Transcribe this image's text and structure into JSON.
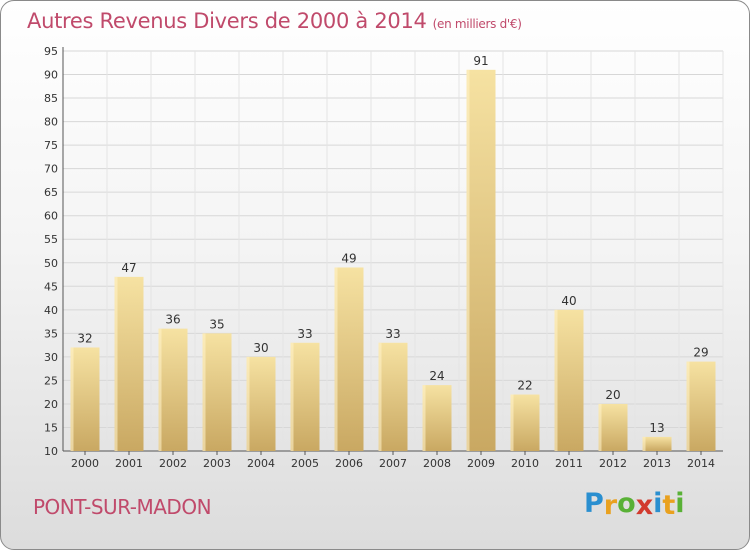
{
  "header": {
    "title": "Autres Revenus Divers de 2000 à 2014",
    "unit": "(en milliers d'€)"
  },
  "footer": {
    "town": "PONT-SUR-MADON",
    "logo_letters": [
      "P",
      "r",
      "o",
      "x",
      "i",
      "t",
      "i"
    ],
    "logo_colors": [
      "#2a8fd0",
      "#e9a11f",
      "#59b136",
      "#d23a2e",
      "#2a8fd0",
      "#e9a11f",
      "#59b136"
    ]
  },
  "colors": {
    "bar_light": "#f6e2a2",
    "bar_dark": "#c9a862",
    "title": "#c04a6b"
  },
  "chart_data": {
    "type": "bar",
    "title": "Autres Revenus Divers de 2000 à 2014",
    "categories": [
      "2000",
      "2001",
      "2002",
      "2003",
      "2004",
      "2005",
      "2006",
      "2007",
      "2008",
      "2009",
      "2010",
      "2011",
      "2012",
      "2013",
      "2014"
    ],
    "values": [
      32,
      47,
      36,
      35,
      30,
      33,
      49,
      33,
      24,
      91,
      22,
      40,
      20,
      13,
      29
    ],
    "ylim": [
      10,
      95
    ],
    "yticks": [
      10,
      15,
      20,
      25,
      30,
      35,
      40,
      45,
      50,
      55,
      60,
      65,
      70,
      75,
      80,
      85,
      90,
      95
    ],
    "grid": true,
    "xlabel": "",
    "ylabel": ""
  }
}
